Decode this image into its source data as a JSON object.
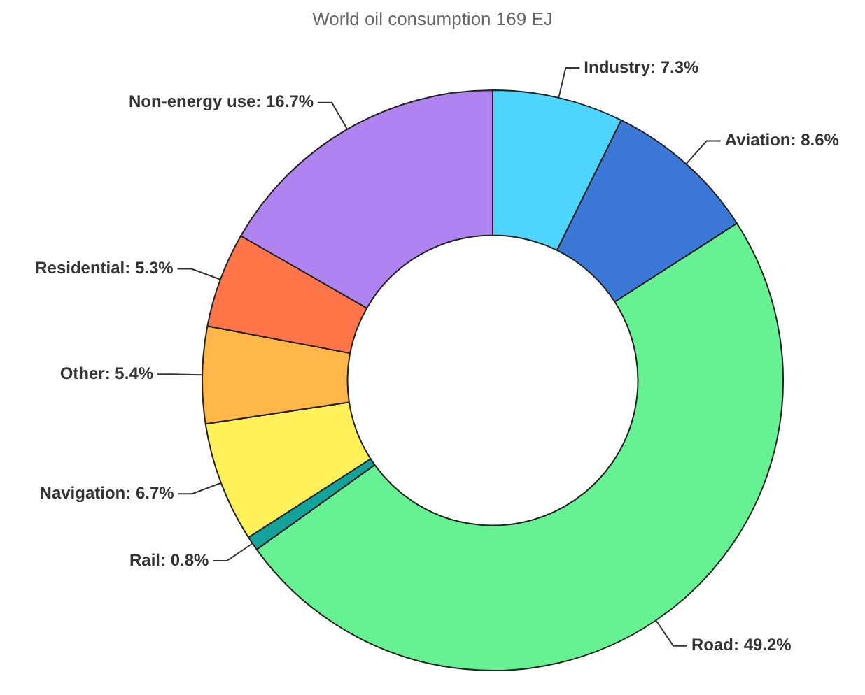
{
  "chart_data": {
    "type": "donut",
    "title": "World oil consumption 169 EJ",
    "categories": [
      "Industry",
      "Aviation",
      "Road",
      "Rail",
      "Navigation",
      "Other",
      "Residential",
      "Non-energy use"
    ],
    "values": [
      7.3,
      8.6,
      49.2,
      0.8,
      6.7,
      5.4,
      5.3,
      16.7
    ],
    "value_labels": [
      "7.3%",
      "8.6%",
      "49.2%",
      "0.8%",
      "6.7%",
      "5.4%",
      "5.3%",
      "16.7%"
    ],
    "colors": [
      "#4dd4ff",
      "#3c78d8",
      "#66f293",
      "#14a39a",
      "#fff05a",
      "#ffb548",
      "#ff7448",
      "#b084f0"
    ],
    "legend": false
  }
}
